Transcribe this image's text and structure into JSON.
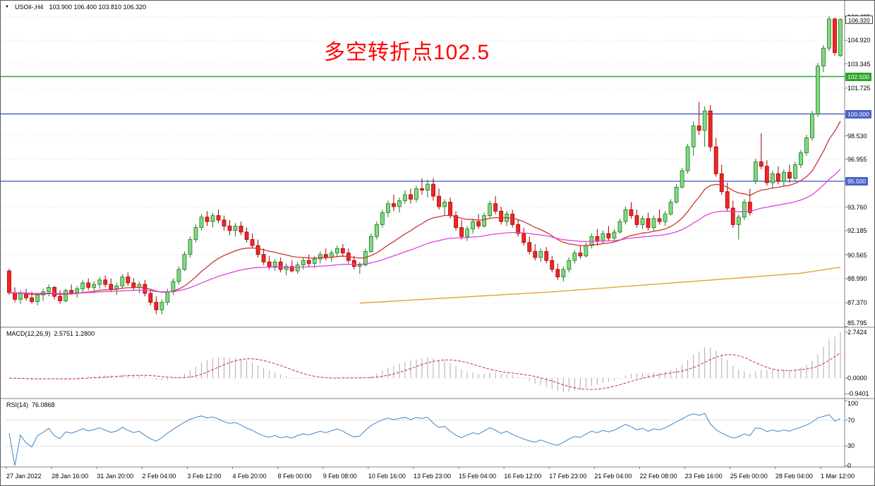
{
  "title_bar": {
    "dropdown_icon": "▼",
    "symbol": "USOil-,H4",
    "ohlc": "103.900 106.400 103.810 106.320"
  },
  "annotation": {
    "text": "多空转折点102.5",
    "color": "#FF0000"
  },
  "price_axis": {
    "grid_labels": [
      {
        "text": "106.495",
        "price": 106.495
      },
      {
        "text": "104.920",
        "price": 104.92
      },
      {
        "text": "103.345",
        "price": 103.345
      },
      {
        "text": "101.725",
        "price": 101.725
      },
      {
        "text": "98.530",
        "price": 98.53
      },
      {
        "text": "96.955",
        "price": 96.955
      },
      {
        "text": "93.760",
        "price": 93.76
      },
      {
        "text": "92.185",
        "price": 92.185
      },
      {
        "text": "90.565",
        "price": 90.565
      },
      {
        "text": "88.990",
        "price": 88.99
      },
      {
        "text": "87.370",
        "price": 87.37
      },
      {
        "text": "85.795",
        "price": 85.795
      }
    ],
    "badges": [
      {
        "text": "106.320",
        "price": 106.32,
        "bg": "#FFFFFF",
        "fg": "#000000",
        "border": "#444444"
      },
      {
        "text": "102.500",
        "price": 102.5,
        "bg": "#2AA52A",
        "fg": "#FFFFFF"
      },
      {
        "text": "100.000",
        "price": 100.0,
        "bg": "#4A62C8",
        "fg": "#FFFFFF"
      },
      {
        "text": "95.500",
        "price": 95.5,
        "bg": "#4A62C8",
        "fg": "#FFFFFF"
      }
    ]
  },
  "hlines": [
    {
      "price": 102.5,
      "color": "#2AA52A",
      "name": "level-102.5"
    },
    {
      "price": 100.0,
      "color": "#4A62C8",
      "name": "level-100"
    },
    {
      "price": 95.5,
      "color": "#4A62C8",
      "name": "level-95.5"
    }
  ],
  "chart_data": {
    "type": "candlestick",
    "symbol": "USOil",
    "timeframe": "H4",
    "title": "USOil-,H4",
    "last_ohlc": {
      "open": 103.9,
      "high": 106.4,
      "low": 103.81,
      "close": 106.32
    },
    "price_range": [
      85.73,
      107.1
    ],
    "x_axis_labels": [
      "27 Jan 2022",
      "28 Jan 16:00",
      "31 Jan 20:00",
      "2 Feb 04:00",
      "3 Feb 12:00",
      "4 Feb 20:00",
      "8 Feb 00:00",
      "9 Feb 08:00",
      "10 Feb 16:00",
      "13 Feb 23:00",
      "15 Feb 04:00",
      "16 Feb 12:00",
      "17 Feb 23:00",
      "21 Feb 04:00",
      "22 Feb 08:00",
      "23 Feb 16:00",
      "25 Feb 00:00",
      "28 Feb 04:00",
      "1 Mar 12:00"
    ],
    "candles": [
      [
        89.5,
        89.65,
        87.9,
        88.05
      ],
      [
        88.05,
        88.4,
        87.4,
        87.6
      ],
      [
        87.6,
        88.2,
        87.3,
        88.0
      ],
      [
        88.0,
        88.3,
        87.5,
        87.7
      ],
      [
        87.7,
        88.1,
        87.3,
        87.45
      ],
      [
        87.45,
        88.0,
        87.2,
        87.9
      ],
      [
        87.9,
        88.3,
        87.5,
        88.1
      ],
      [
        88.1,
        88.6,
        87.8,
        88.4
      ],
      [
        88.4,
        88.5,
        87.6,
        87.8
      ],
      [
        87.8,
        88.2,
        87.3,
        87.5
      ],
      [
        87.5,
        88.3,
        87.4,
        88.2
      ],
      [
        88.2,
        88.6,
        87.9,
        88.05
      ],
      [
        88.05,
        88.5,
        87.7,
        88.3
      ],
      [
        88.3,
        88.9,
        88.1,
        88.7
      ],
      [
        88.7,
        89.0,
        88.2,
        88.4
      ],
      [
        88.4,
        88.8,
        88.0,
        88.6
      ],
      [
        88.6,
        89.1,
        88.3,
        88.9
      ],
      [
        88.9,
        89.2,
        88.4,
        88.6
      ],
      [
        88.6,
        89.0,
        88.1,
        88.3
      ],
      [
        88.3,
        88.7,
        87.9,
        88.5
      ],
      [
        88.5,
        89.3,
        88.3,
        89.1
      ],
      [
        89.1,
        89.4,
        88.5,
        88.7
      ],
      [
        88.7,
        89.0,
        88.2,
        88.4
      ],
      [
        88.4,
        88.8,
        88.0,
        88.6
      ],
      [
        88.6,
        88.9,
        87.8,
        88.0
      ],
      [
        88.0,
        88.3,
        87.2,
        87.4
      ],
      [
        87.4,
        87.8,
        86.6,
        86.9
      ],
      [
        86.9,
        87.6,
        86.6,
        87.4
      ],
      [
        87.4,
        88.3,
        87.2,
        88.1
      ],
      [
        88.1,
        89.0,
        87.9,
        88.8
      ],
      [
        88.8,
        89.8,
        88.6,
        89.6
      ],
      [
        89.6,
        90.8,
        89.5,
        90.6
      ],
      [
        90.6,
        91.8,
        90.4,
        91.6
      ],
      [
        91.6,
        92.6,
        91.4,
        92.4
      ],
      [
        92.4,
        93.3,
        92.2,
        93.1
      ],
      [
        93.1,
        93.5,
        92.5,
        92.8
      ],
      [
        92.8,
        93.4,
        92.4,
        93.2
      ],
      [
        93.2,
        93.6,
        92.7,
        92.9
      ],
      [
        92.9,
        93.2,
        92.2,
        92.5
      ],
      [
        92.5,
        92.9,
        91.9,
        92.2
      ],
      [
        92.2,
        92.7,
        91.8,
        92.5
      ],
      [
        92.5,
        92.8,
        91.9,
        92.1
      ],
      [
        92.1,
        92.4,
        91.4,
        91.6
      ],
      [
        91.6,
        92.0,
        91.0,
        91.2
      ],
      [
        91.2,
        91.6,
        90.4,
        90.6
      ],
      [
        90.6,
        91.0,
        89.9,
        90.1
      ],
      [
        90.1,
        90.5,
        89.6,
        89.8
      ],
      [
        89.8,
        90.3,
        89.5,
        90.1
      ],
      [
        90.1,
        90.4,
        89.4,
        89.6
      ],
      [
        89.6,
        90.0,
        89.2,
        89.8
      ],
      [
        89.8,
        90.2,
        89.4,
        89.5
      ],
      [
        89.5,
        90.1,
        89.3,
        89.9
      ],
      [
        89.9,
        90.4,
        89.6,
        90.2
      ],
      [
        90.2,
        90.6,
        89.8,
        90.0
      ],
      [
        90.0,
        90.5,
        89.7,
        90.3
      ],
      [
        90.3,
        90.8,
        90.0,
        90.6
      ],
      [
        90.6,
        91.0,
        90.2,
        90.4
      ],
      [
        90.4,
        90.9,
        90.1,
        90.7
      ],
      [
        90.7,
        91.2,
        90.4,
        91.0
      ],
      [
        91.0,
        91.3,
        90.5,
        90.7
      ],
      [
        90.7,
        91.0,
        90.0,
        90.2
      ],
      [
        90.2,
        90.5,
        89.6,
        89.8
      ],
      [
        89.8,
        90.1,
        89.3,
        89.9
      ],
      [
        89.9,
        91.0,
        89.8,
        90.8
      ],
      [
        90.8,
        92.0,
        90.7,
        91.8
      ],
      [
        91.8,
        92.8,
        91.6,
        92.6
      ],
      [
        92.6,
        93.6,
        92.4,
        93.4
      ],
      [
        93.4,
        94.2,
        93.1,
        94.0
      ],
      [
        94.0,
        94.6,
        93.5,
        93.8
      ],
      [
        93.8,
        94.4,
        93.4,
        94.2
      ],
      [
        94.2,
        94.9,
        94.0,
        94.6
      ],
      [
        94.6,
        95.0,
        94.0,
        94.3
      ],
      [
        94.3,
        95.2,
        94.1,
        95.0
      ],
      [
        95.0,
        95.7,
        94.6,
        94.9
      ],
      [
        94.9,
        95.6,
        94.4,
        95.3
      ],
      [
        95.3,
        95.7,
        94.2,
        94.5
      ],
      [
        94.5,
        95.0,
        93.6,
        93.8
      ],
      [
        93.8,
        94.3,
        93.2,
        94.1
      ],
      [
        94.1,
        94.4,
        93.0,
        93.2
      ],
      [
        93.2,
        93.5,
        92.2,
        92.4
      ],
      [
        92.4,
        92.9,
        91.6,
        91.8
      ],
      [
        91.8,
        92.5,
        91.5,
        92.3
      ],
      [
        92.3,
        93.0,
        92.0,
        92.8
      ],
      [
        92.8,
        93.3,
        92.3,
        92.5
      ],
      [
        92.5,
        93.4,
        92.4,
        93.2
      ],
      [
        93.2,
        94.2,
        93.0,
        94.0
      ],
      [
        94.0,
        94.5,
        93.3,
        93.5
      ],
      [
        93.5,
        93.8,
        92.6,
        92.8
      ],
      [
        92.8,
        93.5,
        92.5,
        93.3
      ],
      [
        93.3,
        93.6,
        92.4,
        92.6
      ],
      [
        92.6,
        92.9,
        91.8,
        92.0
      ],
      [
        92.0,
        92.4,
        91.2,
        91.4
      ],
      [
        91.4,
        91.8,
        90.6,
        90.8
      ],
      [
        90.8,
        91.3,
        90.2,
        90.4
      ],
      [
        90.4,
        91.0,
        90.1,
        90.8
      ],
      [
        90.8,
        91.1,
        90.0,
        90.2
      ],
      [
        90.2,
        90.5,
        89.4,
        89.6
      ],
      [
        89.6,
        90.0,
        88.9,
        89.1
      ],
      [
        89.1,
        89.8,
        88.8,
        89.6
      ],
      [
        89.6,
        90.4,
        89.4,
        90.2
      ],
      [
        90.2,
        90.9,
        90.0,
        90.7
      ],
      [
        90.7,
        91.2,
        90.3,
        90.5
      ],
      [
        90.5,
        91.4,
        90.4,
        91.2
      ],
      [
        91.2,
        92.0,
        91.0,
        91.8
      ],
      [
        91.8,
        92.3,
        91.2,
        91.5
      ],
      [
        91.5,
        92.2,
        91.3,
        92.0
      ],
      [
        92.0,
        92.5,
        91.5,
        91.7
      ],
      [
        91.7,
        92.3,
        91.4,
        92.1
      ],
      [
        92.1,
        93.0,
        92.0,
        92.8
      ],
      [
        92.8,
        93.8,
        92.6,
        93.6
      ],
      [
        93.6,
        94.1,
        93.0,
        93.2
      ],
      [
        93.2,
        93.6,
        92.4,
        92.6
      ],
      [
        92.6,
        93.2,
        92.3,
        93.0
      ],
      [
        93.0,
        93.4,
        92.2,
        92.4
      ],
      [
        92.4,
        93.2,
        92.2,
        93.0
      ],
      [
        93.0,
        93.6,
        92.6,
        92.8
      ],
      [
        92.8,
        93.5,
        92.5,
        93.3
      ],
      [
        93.3,
        94.3,
        93.2,
        94.1
      ],
      [
        94.1,
        95.3,
        94.0,
        95.1
      ],
      [
        95.1,
        96.4,
        95.0,
        96.2
      ],
      [
        96.2,
        98.0,
        96.0,
        97.8
      ],
      [
        97.8,
        99.5,
        97.2,
        99.2
      ],
      [
        99.2,
        100.8,
        98.6,
        98.9
      ],
      [
        98.9,
        100.5,
        97.8,
        100.2
      ],
      [
        100.2,
        100.6,
        97.5,
        97.8
      ],
      [
        97.8,
        98.4,
        95.8,
        96.0
      ],
      [
        96.0,
        96.6,
        94.6,
        94.8
      ],
      [
        94.8,
        95.4,
        93.5,
        93.7
      ],
      [
        93.7,
        94.2,
        92.4,
        92.6
      ],
      [
        92.6,
        93.3,
        91.6,
        93.1
      ],
      [
        93.1,
        94.3,
        92.9,
        94.1
      ],
      [
        94.1,
        95.0,
        93.2,
        93.4
      ],
      [
        95.5,
        97.0,
        95.3,
        96.8
      ],
      [
        96.8,
        98.7,
        96.3,
        96.5
      ],
      [
        96.5,
        96.9,
        95.2,
        95.4
      ],
      [
        95.4,
        96.2,
        95.0,
        96.0
      ],
      [
        96.0,
        96.5,
        95.3,
        95.5
      ],
      [
        95.5,
        96.3,
        95.2,
        96.1
      ],
      [
        96.1,
        96.6,
        95.4,
        95.7
      ],
      [
        95.7,
        96.8,
        95.5,
        96.6
      ],
      [
        96.6,
        97.6,
        96.4,
        97.4
      ],
      [
        97.4,
        98.6,
        97.2,
        98.4
      ],
      [
        98.4,
        100.2,
        98.2,
        100.0
      ],
      [
        100.0,
        103.4,
        99.8,
        103.2
      ],
      [
        103.2,
        104.6,
        102.8,
        104.4
      ],
      [
        104.4,
        106.55,
        104.2,
        106.35
      ],
      [
        106.35,
        106.45,
        103.9,
        104.1
      ],
      [
        103.9,
        106.4,
        103.81,
        106.32
      ]
    ],
    "colors": {
      "up_fill": "#82D882",
      "up_stroke": "#1E7A1E",
      "down_fill": "#F32525",
      "down_stroke": "#A00000",
      "grid": "#DADADA",
      "macd_bar": "#ABABAB",
      "macd_signal": "#CC3333",
      "rsi_level": "#C8C8C8"
    },
    "moving_averages": [
      {
        "name": "fast-red",
        "type": "ema",
        "period": 21,
        "color": "#CC3333"
      },
      {
        "name": "mid-magenta",
        "type": "ema",
        "period": 55,
        "color": "#DD44DD"
      },
      {
        "name": "slow-orange",
        "type": "points",
        "color": "#DFA22B",
        "points": [
          [
            62,
            87.35
          ],
          [
            78,
            87.7
          ],
          [
            96,
            88.1
          ],
          [
            112,
            88.55
          ],
          [
            128,
            89.0
          ],
          [
            140,
            89.35
          ],
          [
            147,
            89.75
          ]
        ]
      }
    ],
    "macd": {
      "label": "MACD(12,26,9)",
      "values": "2.5751 1.2800",
      "params": [
        12,
        26,
        9
      ],
      "main": 2.5751,
      "signal": 1.28,
      "axis_labels": [
        {
          "text": "2.7424",
          "value": 2.7424
        },
        {
          "text": "0.0000",
          "value": 0
        },
        {
          "text": "-0.9401",
          "value": -0.9401
        }
      ]
    },
    "rsi": {
      "label": "RSI(14)",
      "value": "76.0868",
      "period": 14,
      "color": "#3E85C6",
      "level_lines": [
        70,
        30
      ],
      "axis_labels": [
        {
          "text": "100",
          "value": 100
        },
        {
          "text": "70",
          "value": 70
        },
        {
          "text": "30",
          "value": 30
        },
        {
          "text": "0",
          "value": 0
        }
      ]
    }
  }
}
